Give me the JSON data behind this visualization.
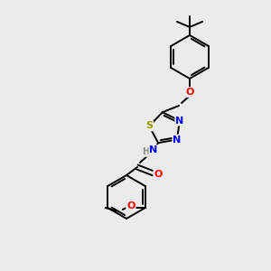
{
  "bg_color": "#ebebeb",
  "bond_color": "#000000",
  "atom_colors": {
    "S": "#999900",
    "N": "#0000ff",
    "O": "#ff0000",
    "H": "#888888",
    "C": "#000000"
  },
  "figsize": [
    3.0,
    3.0
  ],
  "dpi": 100,
  "lw": 1.4
}
